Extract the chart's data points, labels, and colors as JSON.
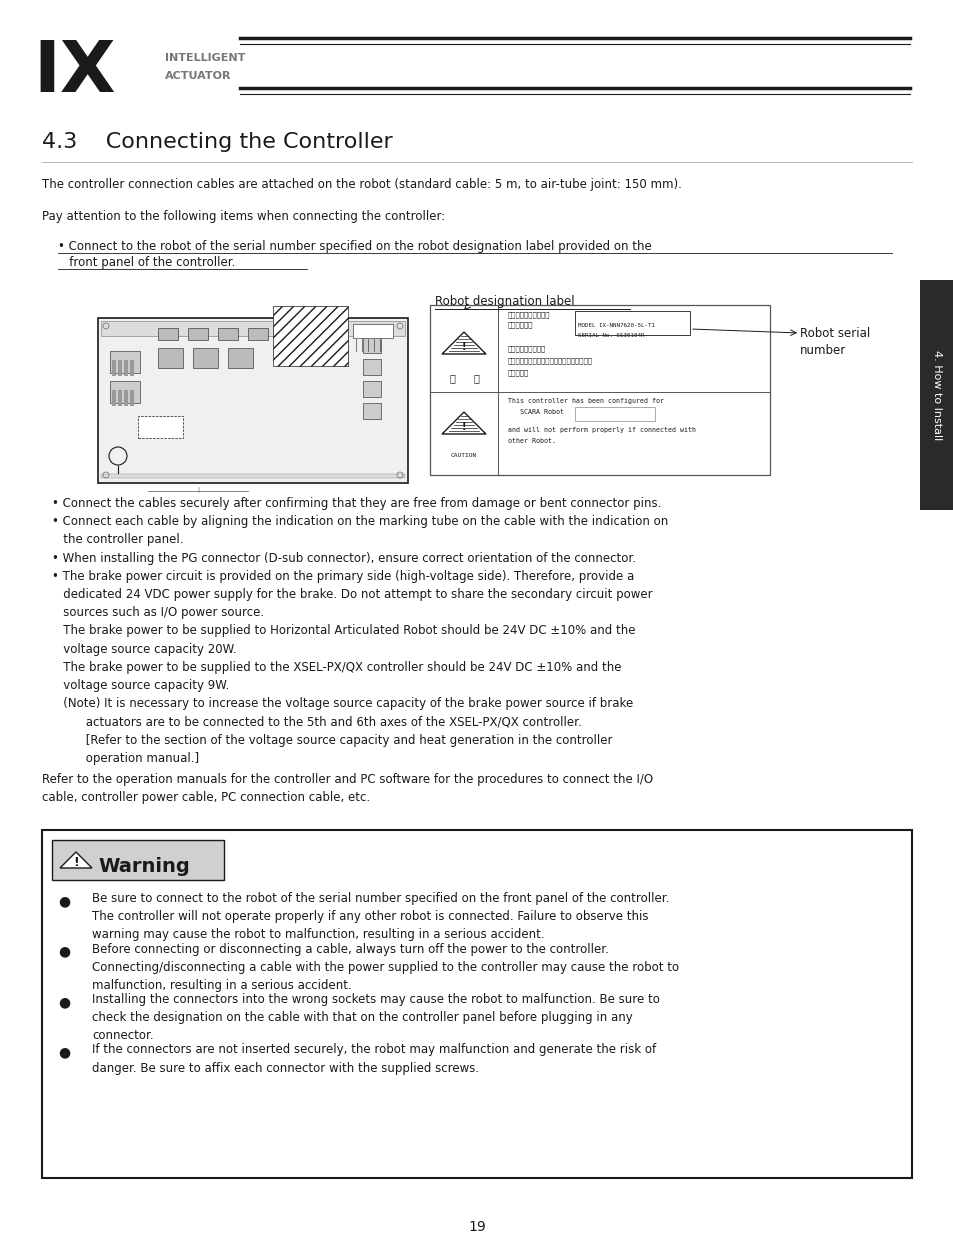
{
  "page_bg": "#ffffff",
  "logo_text": "IX",
  "logo_sub1": "INTELLIGENT",
  "logo_sub2": "ACTUATOR",
  "section_title": "4.3    Connecting the Controller",
  "body_text1": "The controller connection cables are attached on the robot (standard cable: 5 m, to air-tube joint: 150 mm).",
  "body_text2": "Pay attention to the following items when connecting the controller:",
  "bullet1_line1": "• Connect to the robot of the serial number specified on the robot designation label provided on the ",
  "bullet1_line2": "   front panel of the controller.",
  "label_robot_designation": "Robot designation label",
  "label_robot_serial": "Robot serial\nnumber",
  "bullet_points_text": "• Connect the cables securely after confirming that they are free from damage or bent connector pins.\n• Connect each cable by aligning the indication on the marking tube on the cable with the indication on\n   the controller panel.\n• When installing the PG connector (D-sub connector), ensure correct orientation of the connector.\n• The brake power circuit is provided on the primary side (high-voltage side). Therefore, provide a\n   dedicated 24 VDC power supply for the brake. Do not attempt to share the secondary circuit power\n   sources such as I/O power source.\n   The brake power to be supplied to Horizontal Articulated Robot should be 24V DC ±10% and the\n   voltage source capacity 20W.\n   The brake power to be supplied to the XSEL-PX/QX controller should be 24V DC ±10% and the\n   voltage source capacity 9W.\n   (Note) It is necessary to increase the voltage source capacity of the brake power source if brake\n         actuators are to be connected to the 5th and 6th axes of the XSEL-PX/QX controller.\n         [Refer to the section of the voltage source capacity and heat generation in the controller\n         operation manual.]",
  "refer_text": "Refer to the operation manuals for the controller and PC software for the procedures to connect the I/O\ncable, controller power cable, PC connection cable, etc.",
  "warning_title": "Warning",
  "warning_bullets": [
    "Be sure to connect to the robot of the serial number specified on the front panel of the controller.\nThe controller will not operate properly if any other robot is connected. Failure to observe this\nwarning may cause the robot to malfunction, resulting in a serious accident.",
    "Before connecting or disconnecting a cable, always turn off the power to the controller.\nConnecting/disconnecting a cable with the power supplied to the controller may cause the robot to\nmalfunction, resulting in a serious accident.",
    "Installing the connectors into the wrong sockets may cause the robot to malfunction. Be sure to\ncheck the designation on the cable with that on the controller panel before plugging in any\nconnector.",
    "If the connectors are not inserted securely, the robot may malfunction and generate the risk of\ndanger. Be sure to affix each connector with the supplied screws."
  ],
  "sidebar_text": "4. How to Install",
  "page_number": "19",
  "black": "#1a1a1a",
  "gray_logo": "#666666",
  "sidebar_bg": "#2a2a2a",
  "warn_header_bg": "#c8c8c8",
  "light_gray": "#cccccc",
  "mid_gray": "#999999"
}
